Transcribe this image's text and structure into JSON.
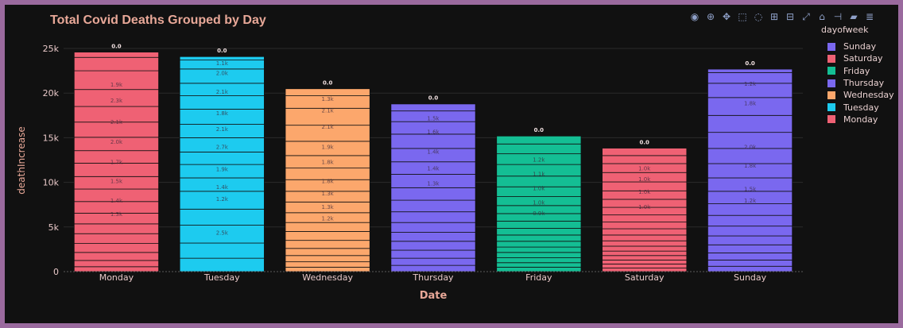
{
  "chart_data": {
    "type": "bar",
    "barmode": "stack",
    "title": "Total Covid Deaths Grouped by Day",
    "xlabel": "Date",
    "ylabel": "deathIncrease",
    "categories": [
      "Monday",
      "Tuesday",
      "Wednesday",
      "Thursday",
      "Friday",
      "Saturday",
      "Sunday"
    ],
    "ylim": [
      0,
      25000
    ],
    "yticks": [
      0,
      5000,
      10000,
      15000,
      20000,
      25000
    ],
    "ytick_labels": [
      "0",
      "5k",
      "10k",
      "15k",
      "20k",
      "25k"
    ],
    "totals": [
      22500,
      24100,
      20500,
      17800,
      13300,
      12900,
      22200
    ],
    "colors": {
      "Monday": "#ef6174",
      "Tuesday": "#1dcbef",
      "Wednesday": "#fca76c",
      "Thursday": "#7a68ef",
      "Friday": "#14be94",
      "Saturday": "#ef6174",
      "Sunday": "#7a68ef"
    },
    "segments": [
      [
        550,
        700,
        900,
        1000,
        1100,
        1100,
        1200,
        1300,
        1400,
        1400,
        1500,
        1400,
        1500,
        1700,
        1750,
        1900,
        2100,
        1500,
        600,
        0
      ],
      [
        1500,
        1700,
        2000,
        1800,
        2000,
        1500,
        1500,
        1400,
        1600,
        1500,
        1700,
        1500,
        1400,
        1600,
        1000,
        400,
        0
      ],
      [
        500,
        600,
        700,
        800,
        900,
        1000,
        1000,
        1100,
        1200,
        1200,
        1300,
        1300,
        1400,
        1600,
        1800,
        1900,
        1400,
        800,
        0
      ],
      [
        700,
        800,
        900,
        1000,
        1000,
        1100,
        1200,
        1300,
        1400,
        1500,
        1400,
        1500,
        1600,
        1400,
        1200,
        800,
        0
      ],
      [
        500,
        500,
        550,
        600,
        600,
        650,
        700,
        750,
        800,
        850,
        900,
        1000,
        1100,
        1200,
        1300,
        1200,
        1100,
        900,
        0
      ],
      [
        400,
        450,
        450,
        500,
        500,
        550,
        600,
        650,
        700,
        750,
        800,
        850,
        900,
        950,
        1000,
        1050,
        1000,
        900,
        850,
        0
      ],
      [
        600,
        700,
        800,
        900,
        1000,
        1100,
        1200,
        1300,
        1400,
        1500,
        1600,
        1700,
        1800,
        1900,
        2000,
        1600,
        1200,
        400,
        0
      ]
    ],
    "top_labels": [
      "0.0",
      "0.0",
      "0.0",
      "0.0",
      "0.0",
      "0.0",
      "0.0"
    ],
    "segment_labels": [
      [
        {
          "y": 21000,
          "text": "1.9k"
        },
        {
          "y": 19200,
          "text": "2.3k"
        },
        {
          "y": 16800,
          "text": "2.1k"
        },
        {
          "y": 14600,
          "text": "2.0k"
        },
        {
          "y": 12300,
          "text": "1.7k"
        },
        {
          "y": 10200,
          "text": "1.5k"
        },
        {
          "y": 8000,
          "text": "1.4k"
        },
        {
          "y": 6500,
          "text": "1.3k"
        }
      ],
      [
        {
          "y": 23400,
          "text": "1.1k"
        },
        {
          "y": 22300,
          "text": "2.0k"
        },
        {
          "y": 20200,
          "text": "2.1k"
        },
        {
          "y": 17800,
          "text": "1.8k"
        },
        {
          "y": 16000,
          "text": "2.1k"
        },
        {
          "y": 14000,
          "text": "2.7k"
        },
        {
          "y": 11500,
          "text": "1.9k"
        },
        {
          "y": 9500,
          "text": "1.4k"
        },
        {
          "y": 8200,
          "text": "1.2k"
        },
        {
          "y": 4400,
          "text": "2.5k"
        }
      ],
      [
        {
          "y": 19400,
          "text": "1.3k"
        },
        {
          "y": 18100,
          "text": "2.1k"
        },
        {
          "y": 16300,
          "text": "2.1k"
        },
        {
          "y": 14000,
          "text": "1.9k"
        },
        {
          "y": 12300,
          "text": "1.8k"
        },
        {
          "y": 10200,
          "text": "1.8k"
        },
        {
          "y": 8800,
          "text": "1.3k"
        },
        {
          "y": 7300,
          "text": "1.3k"
        },
        {
          "y": 6000,
          "text": "1.2k"
        }
      ],
      [
        {
          "y": 17200,
          "text": "1.5k"
        },
        {
          "y": 15700,
          "text": "1.6k"
        },
        {
          "y": 13500,
          "text": "1.4k"
        },
        {
          "y": 11600,
          "text": "1.4k"
        },
        {
          "y": 9900,
          "text": "1.3k"
        }
      ],
      [
        {
          "y": 12600,
          "text": "1.2k"
        },
        {
          "y": 11000,
          "text": "1.1k"
        },
        {
          "y": 9400,
          "text": "1.0k"
        },
        {
          "y": 7800,
          "text": "1.0k"
        },
        {
          "y": 6600,
          "text": "0.9k"
        }
      ],
      [
        {
          "y": 11600,
          "text": "1.0k"
        },
        {
          "y": 10400,
          "text": "1.0k"
        },
        {
          "y": 9000,
          "text": "1.0k"
        },
        {
          "y": 7300,
          "text": "1.0k"
        }
      ],
      [
        {
          "y": 21100,
          "text": "1.2k"
        },
        {
          "y": 18900,
          "text": "1.8k"
        },
        {
          "y": 14000,
          "text": "2.0k"
        },
        {
          "y": 11900,
          "text": "1.8k"
        },
        {
          "y": 9300,
          "text": "1.5k"
        },
        {
          "y": 8000,
          "text": "1.2k"
        }
      ]
    ]
  },
  "legend": {
    "title": "dayofweek",
    "items": [
      {
        "label": "Sunday",
        "color": "#7a68ef"
      },
      {
        "label": "Saturday",
        "color": "#ef6174"
      },
      {
        "label": "Friday",
        "color": "#14be94"
      },
      {
        "label": "Thursday",
        "color": "#7a68ef"
      },
      {
        "label": "Wednesday",
        "color": "#fca76c"
      },
      {
        "label": "Tuesday",
        "color": "#1dcbef"
      },
      {
        "label": "Monday",
        "color": "#ef6174"
      }
    ]
  },
  "modebar": [
    {
      "name": "camera-icon",
      "glyph": "◉"
    },
    {
      "name": "zoom-icon",
      "glyph": "⊕"
    },
    {
      "name": "pan-icon",
      "glyph": "✥"
    },
    {
      "name": "box-select-icon",
      "glyph": "⬚"
    },
    {
      "name": "lasso-select-icon",
      "glyph": "◌"
    },
    {
      "name": "zoom-in-icon",
      "glyph": "⊞"
    },
    {
      "name": "zoom-out-icon",
      "glyph": "⊟"
    },
    {
      "name": "autoscale-icon",
      "glyph": "⤢"
    },
    {
      "name": "home-icon",
      "glyph": "⌂"
    },
    {
      "name": "spike-lines-icon",
      "glyph": "⊣"
    },
    {
      "name": "hover-closest-icon",
      "glyph": "▰"
    },
    {
      "name": "hover-compare-icon",
      "glyph": "≣"
    }
  ]
}
